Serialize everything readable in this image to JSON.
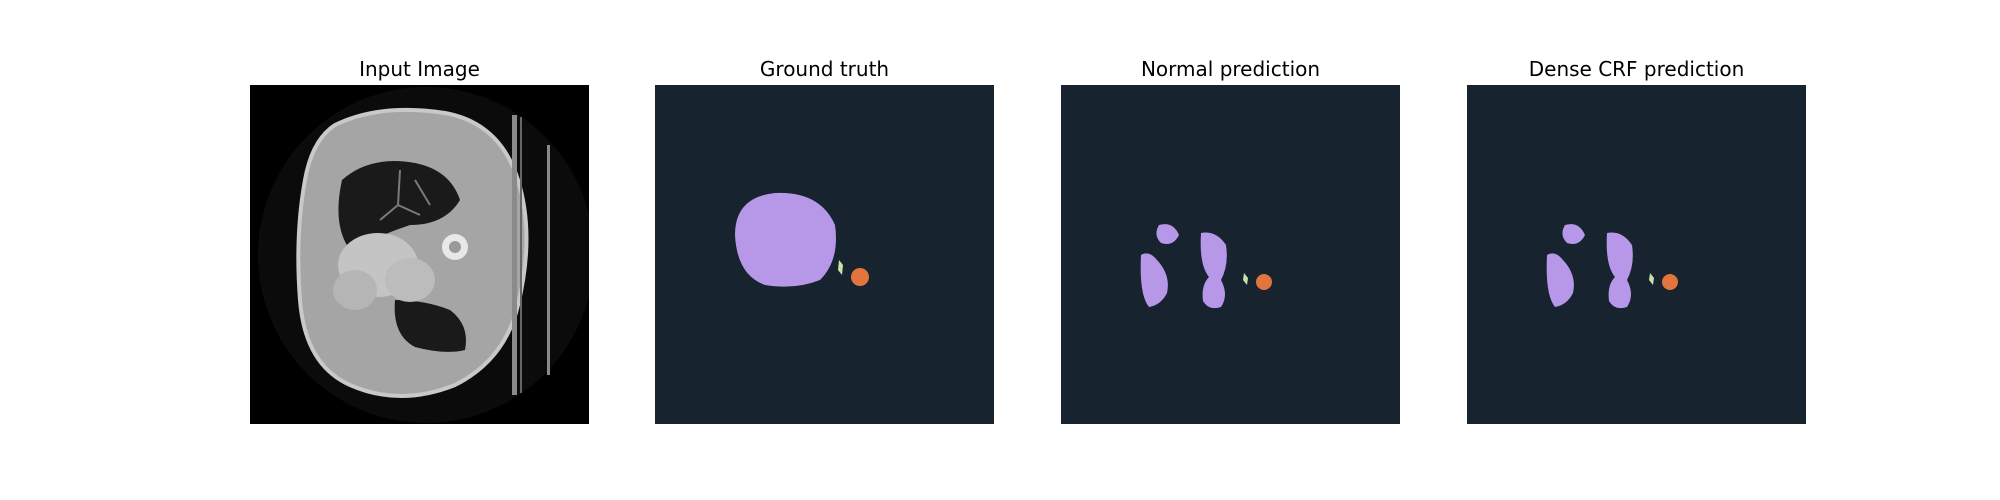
{
  "panels": [
    {
      "title": "Input Image"
    },
    {
      "title": "Ground truth"
    },
    {
      "title": "Normal prediction"
    },
    {
      "title": "Dense CRF prediction"
    }
  ],
  "colors": {
    "figure_background": "#ffffff",
    "mask_background": "#17232f",
    "class_lung": "#b797e8",
    "class_heart": "#e2743e",
    "class_small": "#c9e2a8",
    "ct_background": "#000000"
  }
}
